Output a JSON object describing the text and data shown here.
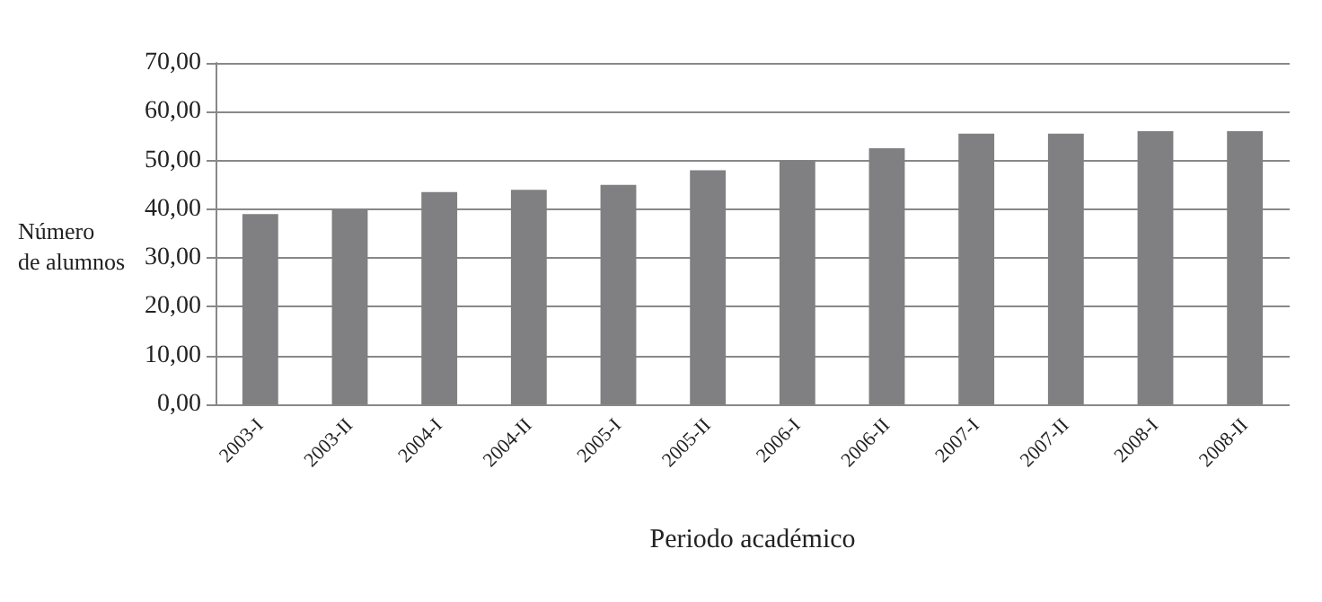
{
  "chart_data": {
    "type": "bar",
    "xlabel": "Periodo académico",
    "ylabel": "Número\nde alumnos",
    "categories": [
      "2003-I",
      "2003-II",
      "2004-I",
      "2004-II",
      "2005-I",
      "2005-II",
      "2006-I",
      "2006-II",
      "2007-I",
      "2007-II",
      "2008-I",
      "2008-II"
    ],
    "values": [
      39,
      40,
      43.5,
      44,
      45,
      48,
      50,
      52.5,
      55.5,
      55.5,
      56,
      56
    ],
    "color": "#808083",
    "ylim": [
      0,
      70
    ],
    "yticks": [
      {
        "value": 0,
        "label": "0,00"
      },
      {
        "value": 10,
        "label": "10,00"
      },
      {
        "value": 20,
        "label": "20,00"
      },
      {
        "value": 30,
        "label": "30,00"
      },
      {
        "value": 40,
        "label": "40,00"
      },
      {
        "value": 50,
        "label": "50,00"
      },
      {
        "value": 60,
        "label": "60,00"
      },
      {
        "value": 70,
        "label": "70,00"
      }
    ],
    "grid": "y"
  }
}
